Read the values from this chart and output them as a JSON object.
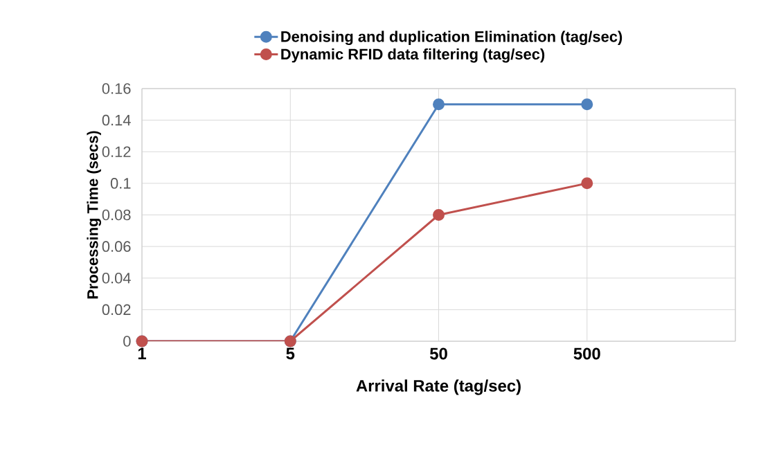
{
  "chart_data": {
    "type": "line",
    "xlabel": "Arrival Rate (tag/sec)",
    "ylabel": "Processing Time (secs)",
    "categories": [
      "1",
      "5",
      "50",
      "500",
      null
    ],
    "series": [
      {
        "name": "Denoising  and duplication Elimination (tag/sec)",
        "color": "#4f81bd",
        "values": [
          0,
          0,
          0.15,
          0.15,
          null
        ]
      },
      {
        "name": "Dynamic RFID data filtering  (tag/sec)",
        "color": "#c0504d",
        "values": [
          0,
          0,
          0.08,
          0.1,
          null
        ]
      }
    ],
    "ylim": [
      0,
      0.16
    ],
    "yticks": [
      0,
      0.02,
      0.04,
      0.06,
      0.08,
      0.1,
      0.12,
      0.14,
      0.16
    ],
    "grid": true,
    "legend": "top",
    "marker": "circle",
    "line_style": "solid"
  }
}
